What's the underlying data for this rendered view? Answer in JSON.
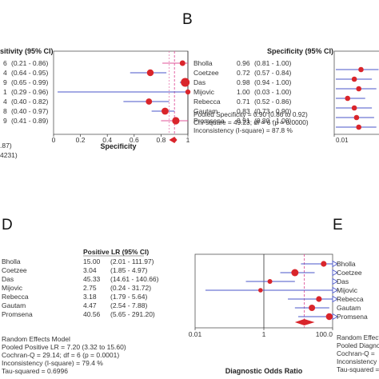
{
  "panel_b": {
    "letter": "B",
    "header_left": "sitivity (95% CI)",
    "left_values": [
      "6",
      "4",
      "9",
      "1",
      "4",
      "8",
      "9"
    ],
    "left_cis": [
      "(0.21 - 0.86)",
      "(0.64 - 0.95)",
      "(0.65 - 0.99)",
      "(0.29 - 0.96)",
      "(0.40 - 0.82)",
      "(0.40 - 0.97)",
      "(0.41 - 0.89)"
    ],
    "left_bottom": [
      ".87)",
      "4231)"
    ],
    "stats": [
      "Pooled Specificity = 0.90 (0.86 to 0.92)",
      "Chi-square = 49.23; df = 6 (p = 0.0000)",
      "Inconsistency (I-square) = 87.8 %"
    ]
  },
  "panel_c": {
    "header": "Specificity (95% CI)",
    "tick_left": "0.01"
  },
  "panel_d": {
    "letter": "D",
    "header": "Positive LR (95% CI)",
    "stats": [
      "Random Effects Model",
      "Pooled Positive LR = 7.20 (3.32 to 15.60)",
      "Cochran-Q = 29.14; df = 6 (p = 0.0001)",
      "Inconsistency (I-square) = 79.4 %",
      "Tau-squared = 0.6996"
    ]
  },
  "panel_e": {
    "letter": "E",
    "stats": [
      "Random Effects",
      "Pooled Diagno",
      "Cochran-Q = ",
      "Inconsistency",
      "Tau-squared ="
    ]
  },
  "colors": {
    "point": "#d9252b",
    "ci": "#4a56c8",
    "pooled": "#e0569a",
    "axis": "#333333",
    "clip": "#4a56c8"
  },
  "chart_data": [
    {
      "type": "forest",
      "panel": "B",
      "xlabel": "Specificity",
      "xlim": [
        0,
        1
      ],
      "ticks": [
        "0",
        "0.2",
        "0.4",
        "0.6",
        "0.8",
        "1"
      ],
      "tick_values": [
        0,
        0.2,
        0.4,
        0.6,
        0.8,
        1
      ],
      "studies": [
        {
          "name": "Bholla",
          "value": 0.96,
          "lo": 0.81,
          "hi": 1.0,
          "value_text": "0.96",
          "ci_text": "(0.81 - 1.00)"
        },
        {
          "name": "Coetzee",
          "value": 0.72,
          "lo": 0.57,
          "hi": 0.84,
          "value_text": "0.72",
          "ci_text": "(0.57 - 0.84)"
        },
        {
          "name": "Das",
          "value": 0.98,
          "lo": 0.94,
          "hi": 1.0,
          "value_text": "0.98",
          "ci_text": "(0.94 - 1.00)"
        },
        {
          "name": "Mijovic",
          "value": 1.0,
          "lo": 0.03,
          "hi": 1.0,
          "value_text": "1.00",
          "ci_text": "(0.03 - 1.00)"
        },
        {
          "name": "Rebecca",
          "value": 0.71,
          "lo": 0.52,
          "hi": 0.86,
          "value_text": "0.71",
          "ci_text": "(0.52 - 0.86)"
        },
        {
          "name": "Gautam",
          "value": 0.83,
          "lo": 0.73,
          "hi": 0.9,
          "value_text": "0.83",
          "ci_text": "(0.73 - 0.90)"
        },
        {
          "name": "Promsena",
          "value": 0.91,
          "lo": 0.8,
          "hi": 1.0,
          "value_text": "0.91",
          "ci_text": "(0.80 - 1.00)"
        }
      ],
      "pooled": {
        "value": 0.9,
        "lo": 0.86,
        "hi": 0.92
      }
    },
    {
      "type": "forest",
      "panel": "C",
      "xlabel": "",
      "ticks": [
        "0.01"
      ],
      "tick_values": [
        0.01
      ],
      "studies": [
        {
          "name": "Bholla",
          "value": 0.6
        },
        {
          "name": "Coetzee",
          "value": 0.45
        },
        {
          "name": "Das",
          "value": 0.55
        },
        {
          "name": "Mijovic",
          "value": 0.3
        },
        {
          "name": "Rebecca",
          "value": 0.45
        },
        {
          "name": "Gautam",
          "value": 0.5
        },
        {
          "name": "Promsena",
          "value": 0.55
        }
      ]
    },
    {
      "type": "table",
      "panel": "D",
      "columns": [
        "Study",
        "Positive LR",
        "95% CI"
      ],
      "rows": [
        [
          "Bholla",
          "15.00",
          "(2.01 - 111.97)"
        ],
        [
          "Coetzee",
          "3.04",
          "(1.85 - 4.97)"
        ],
        [
          "Das",
          "45.33",
          "(14.61 - 140.66)"
        ],
        [
          "Mijovic",
          "2.75",
          "(0.24 - 31.72)"
        ],
        [
          "Rebecca",
          "3.18",
          "(1.79 - 5.64)"
        ],
        [
          "Gautam",
          "4.47",
          "(2.54 - 7.88)"
        ],
        [
          "Promsena",
          "40.56",
          "(5.65 - 291.20)"
        ]
      ]
    },
    {
      "type": "forest",
      "panel": "E",
      "xlabel": "Diagnostic Odds Ratio",
      "xscale": "log",
      "xlim": [
        0.01,
        100
      ],
      "ticks": [
        "0.01",
        "1",
        "100.0"
      ],
      "tick_values": [
        0.01,
        1,
        100
      ],
      "studies": [
        {
          "name": "Bholla",
          "value": 55,
          "lo": 12,
          "hi": 100,
          "clipped": true
        },
        {
          "name": "Coetzee",
          "value": 8,
          "lo": 3,
          "hi": 30,
          "clipped": true
        },
        {
          "name": "Das",
          "value": 1.5,
          "lo": 0.3,
          "hi": 8,
          "clipped": true
        },
        {
          "name": "Mijovic",
          "value": 0.8,
          "lo": 0.02,
          "hi": 100,
          "clipped": true
        },
        {
          "name": "Rebecca",
          "value": 40,
          "lo": 5,
          "hi": 100,
          "clipped": true
        },
        {
          "name": "Gautam",
          "value": 25,
          "lo": 8,
          "hi": 80,
          "clipped": false
        },
        {
          "name": "Promsena",
          "value": 80,
          "lo": 10,
          "hi": 100,
          "clipped": true
        }
      ]
    }
  ]
}
